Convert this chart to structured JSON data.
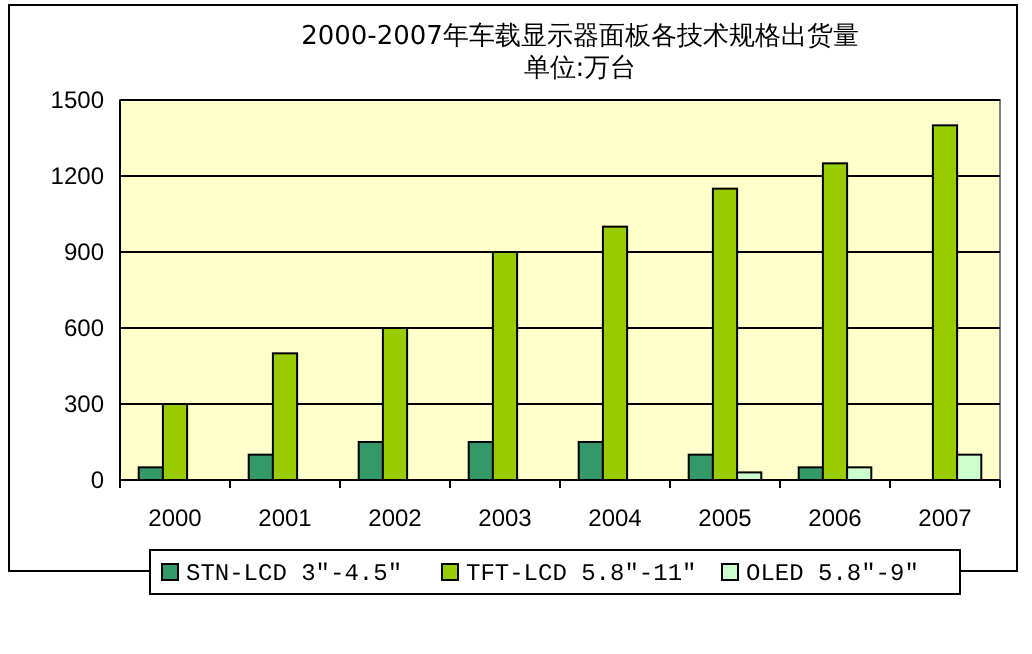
{
  "chart_data": {
    "type": "bar",
    "title": "2000-2007年车载显示器面板各技术规格出货量",
    "subtitle": "单位:万台",
    "categories": [
      "2000",
      "2001",
      "2002",
      "2003",
      "2004",
      "2005",
      "2006",
      "2007"
    ],
    "series": [
      {
        "name": "STN-LCD 3″-4.5″",
        "color": "#339966",
        "values": [
          50,
          100,
          150,
          150,
          150,
          100,
          50,
          null
        ]
      },
      {
        "name": "TFT-LCD 5.8″-11″",
        "color": "#99cc00",
        "values": [
          300,
          500,
          600,
          900,
          1000,
          1150,
          1250,
          1400
        ]
      },
      {
        "name": "OLED 5.8″-9″",
        "color": "#ccffcc",
        "values": [
          null,
          null,
          null,
          null,
          null,
          30,
          50,
          100
        ]
      }
    ],
    "ylim": [
      0,
      1500
    ],
    "yticks": [
      0,
      300,
      600,
      900,
      1200,
      1500
    ],
    "grid": "y",
    "legend": "bottom"
  }
}
